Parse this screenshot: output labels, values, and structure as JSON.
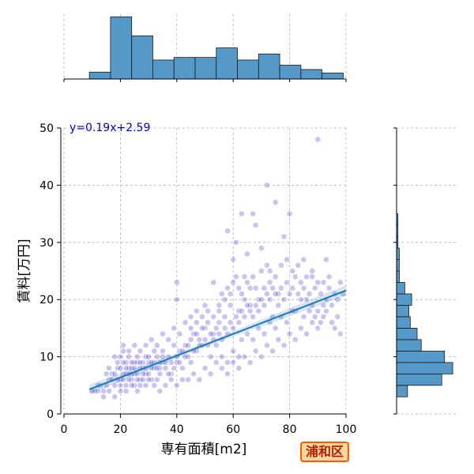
{
  "chart_data": {
    "type": "scatter",
    "title": "",
    "xlabel": "専有面積[m2]",
    "ylabel": "賃料[万円]",
    "xlim": [
      0,
      100
    ],
    "ylim": [
      0,
      50
    ],
    "xticks": [
      "0",
      "20",
      "40",
      "60",
      "80",
      "100"
    ],
    "yticks": [
      "0",
      "10",
      "20",
      "30",
      "40",
      "50"
    ],
    "grid": true,
    "annotation": "y=0.19x+2.59",
    "badge": "浦和区",
    "regression": {
      "slope": 0.19,
      "intercept": 2.59,
      "x_range": [
        9,
        100
      ]
    },
    "point_color": "#3a32c8",
    "bar_color": "#5499c7",
    "line_color": "#1f77b4",
    "x_histogram": {
      "bin_edges": [
        9,
        16.5,
        24,
        31.5,
        39,
        46.5,
        54,
        61.5,
        69,
        76.5,
        84,
        91.5,
        99
      ],
      "counts": [
        8,
        72,
        50,
        22,
        25,
        25,
        36,
        22,
        29,
        16,
        11,
        7
      ]
    },
    "y_histogram": {
      "bin_edges": [
        3,
        5,
        7,
        9,
        11,
        13,
        15,
        17,
        19,
        21,
        23,
        25,
        27,
        29,
        31,
        33,
        35,
        37
      ],
      "counts": [
        8,
        33,
        41,
        35,
        18,
        15,
        10,
        9,
        11,
        6,
        2,
        2,
        2,
        1,
        1,
        1,
        0
      ]
    },
    "points": [
      [
        85,
        27
      ],
      [
        90,
        48
      ],
      [
        72,
        40
      ],
      [
        75,
        37
      ],
      [
        67,
        35
      ],
      [
        63,
        35
      ],
      [
        58,
        32
      ],
      [
        61,
        30
      ],
      [
        60,
        27
      ],
      [
        70,
        29
      ],
      [
        65,
        28
      ],
      [
        80,
        35
      ],
      [
        78,
        31
      ],
      [
        68,
        33
      ],
      [
        93,
        27
      ],
      [
        99,
        21
      ],
      [
        96,
        15
      ],
      [
        98,
        14
      ],
      [
        92,
        19
      ],
      [
        88,
        24
      ],
      [
        84,
        20
      ],
      [
        82,
        18
      ],
      [
        76,
        21
      ],
      [
        74,
        17
      ],
      [
        73,
        23
      ],
      [
        71,
        22
      ],
      [
        69,
        20
      ],
      [
        66,
        19
      ],
      [
        64,
        24
      ],
      [
        62,
        18
      ],
      [
        59,
        21
      ],
      [
        57,
        17
      ],
      [
        55,
        16
      ],
      [
        54,
        12
      ],
      [
        53,
        14
      ],
      [
        52,
        10
      ],
      [
        51,
        18
      ],
      [
        50,
        15
      ],
      [
        49,
        12
      ],
      [
        48,
        13
      ],
      [
        47,
        11
      ],
      [
        46,
        14
      ],
      [
        45,
        9
      ],
      [
        44,
        10
      ],
      [
        43,
        12
      ],
      [
        42,
        8
      ],
      [
        41,
        11
      ],
      [
        40,
        9
      ],
      [
        39,
        12
      ],
      [
        38,
        7
      ],
      [
        37,
        10
      ],
      [
        36,
        8
      ],
      [
        35,
        9
      ],
      [
        34,
        7
      ],
      [
        33,
        10
      ],
      [
        32,
        8
      ],
      [
        31,
        6
      ],
      [
        30,
        9
      ],
      [
        29,
        7
      ],
      [
        28,
        8
      ],
      [
        27,
        6
      ],
      [
        26,
        9
      ],
      [
        25,
        7
      ],
      [
        24,
        6
      ],
      [
        23,
        8
      ],
      [
        22,
        5
      ],
      [
        21,
        7
      ],
      [
        20,
        6
      ],
      [
        19,
        9
      ],
      [
        18,
        5
      ],
      [
        17,
        7
      ],
      [
        16,
        6
      ],
      [
        15,
        5
      ],
      [
        14,
        4
      ],
      [
        13,
        5
      ],
      [
        12,
        4
      ],
      [
        11,
        4
      ],
      [
        10,
        4
      ],
      [
        20,
        10
      ],
      [
        21,
        11
      ],
      [
        22,
        9
      ],
      [
        23,
        10
      ],
      [
        24,
        8
      ],
      [
        25,
        9
      ],
      [
        26,
        7
      ],
      [
        27,
        8
      ],
      [
        28,
        9
      ],
      [
        29,
        10
      ],
      [
        30,
        7
      ],
      [
        31,
        8
      ],
      [
        32,
        9
      ],
      [
        33,
        6
      ],
      [
        34,
        8
      ],
      [
        35,
        10
      ],
      [
        36,
        9
      ],
      [
        37,
        7
      ],
      [
        38,
        9
      ],
      [
        39,
        8
      ],
      [
        40,
        10
      ],
      [
        41,
        9
      ],
      [
        42,
        11
      ],
      [
        43,
        10
      ],
      [
        44,
        12
      ],
      [
        45,
        13
      ],
      [
        46,
        11
      ],
      [
        47,
        14
      ],
      [
        48,
        12
      ],
      [
        49,
        15
      ],
      [
        50,
        13
      ],
      [
        51,
        12
      ],
      [
        52,
        14
      ],
      [
        53,
        13
      ],
      [
        54,
        15
      ],
      [
        55,
        14
      ],
      [
        56,
        13
      ],
      [
        57,
        15
      ],
      [
        58,
        14
      ],
      [
        59,
        16
      ],
      [
        60,
        15
      ],
      [
        61,
        17
      ],
      [
        62,
        16
      ],
      [
        63,
        18
      ],
      [
        64,
        17
      ],
      [
        65,
        19
      ],
      [
        66,
        18
      ],
      [
        67,
        17
      ],
      [
        68,
        19
      ],
      [
        69,
        18
      ],
      [
        70,
        20
      ],
      [
        71,
        19
      ],
      [
        72,
        21
      ],
      [
        73,
        20
      ],
      [
        74,
        22
      ],
      [
        75,
        21
      ],
      [
        76,
        19
      ],
      [
        77,
        22
      ],
      [
        78,
        20
      ],
      [
        79,
        23
      ],
      [
        80,
        21
      ],
      [
        81,
        22
      ],
      [
        82,
        24
      ],
      [
        83,
        21
      ],
      [
        84,
        23
      ],
      [
        85,
        22
      ],
      [
        86,
        20
      ],
      [
        87,
        21
      ],
      [
        88,
        19
      ],
      [
        89,
        22
      ],
      [
        90,
        18
      ],
      [
        91,
        21
      ],
      [
        92,
        23
      ],
      [
        93,
        20
      ],
      [
        94,
        22
      ],
      [
        95,
        19
      ],
      [
        96,
        21
      ],
      [
        97,
        20
      ],
      [
        98,
        23
      ],
      [
        15,
        7
      ],
      [
        16,
        8
      ],
      [
        17,
        6
      ],
      [
        18,
        7
      ],
      [
        19,
        8
      ],
      [
        20,
        5
      ],
      [
        21,
        6
      ],
      [
        22,
        7
      ],
      [
        23,
        6
      ],
      [
        24,
        7
      ],
      [
        25,
        5
      ],
      [
        26,
        6
      ],
      [
        27,
        5
      ],
      [
        28,
        6
      ],
      [
        29,
        5
      ],
      [
        30,
        6
      ],
      [
        18,
        10
      ],
      [
        19,
        6
      ],
      [
        20,
        8
      ],
      [
        21,
        9
      ],
      [
        22,
        8
      ],
      [
        23,
        7
      ],
      [
        24,
        9
      ],
      [
        25,
        8
      ],
      [
        26,
        10
      ],
      [
        27,
        9
      ],
      [
        28,
        7
      ],
      [
        29,
        8
      ],
      [
        30,
        10
      ],
      [
        31,
        9
      ],
      [
        32,
        11
      ],
      [
        33,
        8
      ],
      [
        34,
        9
      ],
      [
        35,
        11
      ],
      [
        40,
        23
      ],
      [
        40,
        20
      ],
      [
        45,
        17
      ],
      [
        47,
        16
      ],
      [
        50,
        19
      ],
      [
        53,
        23
      ],
      [
        55,
        18
      ],
      [
        56,
        21
      ],
      [
        58,
        22
      ],
      [
        60,
        23
      ],
      [
        61,
        24
      ],
      [
        62,
        22
      ],
      [
        63,
        21
      ],
      [
        64,
        20
      ],
      [
        65,
        23
      ],
      [
        66,
        22
      ],
      [
        67,
        24
      ],
      [
        68,
        22
      ],
      [
        70,
        25
      ],
      [
        72,
        26
      ],
      [
        73,
        25
      ],
      [
        75,
        24
      ],
      [
        77,
        26
      ],
      [
        79,
        27
      ],
      [
        81,
        25
      ],
      [
        83,
        26
      ],
      [
        86,
        24
      ],
      [
        88,
        25
      ],
      [
        90,
        23
      ],
      [
        94,
        24
      ],
      [
        56,
        10
      ],
      [
        58,
        9
      ],
      [
        60,
        11
      ],
      [
        62,
        8
      ],
      [
        64,
        10
      ],
      [
        66,
        9
      ],
      [
        68,
        11
      ],
      [
        70,
        10
      ],
      [
        72,
        12
      ],
      [
        74,
        11
      ],
      [
        76,
        13
      ],
      [
        78,
        12
      ],
      [
        80,
        14
      ],
      [
        82,
        13
      ],
      [
        84,
        15
      ],
      [
        86,
        14
      ],
      [
        88,
        16
      ],
      [
        90,
        15
      ],
      [
        92,
        17
      ],
      [
        95,
        16
      ],
      [
        44,
        6
      ],
      [
        46,
        7
      ],
      [
        48,
        6
      ],
      [
        50,
        8
      ],
      [
        52,
        7
      ],
      [
        54,
        9
      ],
      [
        56,
        8
      ],
      [
        58,
        7
      ],
      [
        60,
        9
      ],
      [
        62,
        10
      ],
      [
        36,
        5
      ],
      [
        38,
        6
      ],
      [
        40,
        5
      ],
      [
        42,
        6
      ],
      [
        34,
        4
      ],
      [
        32,
        5
      ],
      [
        26,
        4
      ],
      [
        24,
        5
      ],
      [
        22,
        4
      ],
      [
        20,
        4
      ],
      [
        14,
        3
      ],
      [
        12,
        5
      ],
      [
        16,
        4
      ],
      [
        18,
        3
      ],
      [
        63,
        13
      ],
      [
        65,
        14
      ],
      [
        67,
        13
      ],
      [
        69,
        15
      ],
      [
        71,
        14
      ],
      [
        73,
        16
      ],
      [
        75,
        15
      ],
      [
        77,
        17
      ],
      [
        79,
        16
      ],
      [
        81,
        18
      ],
      [
        85,
        17
      ],
      [
        87,
        18
      ],
      [
        89,
        17
      ],
      [
        91,
        16
      ],
      [
        93,
        18
      ],
      [
        97,
        17
      ],
      [
        59,
        19
      ],
      [
        57,
        20
      ],
      [
        55,
        19
      ],
      [
        53,
        17
      ],
      [
        51,
        16
      ],
      [
        49,
        17
      ],
      [
        47,
        18
      ],
      [
        45,
        15
      ],
      [
        43,
        16
      ],
      [
        41,
        14
      ],
      [
        39,
        15
      ],
      [
        37,
        13
      ],
      [
        35,
        14
      ],
      [
        33,
        12
      ],
      [
        31,
        13
      ],
      [
        29,
        12
      ],
      [
        27,
        11
      ],
      [
        25,
        12
      ],
      [
        23,
        11
      ],
      [
        21,
        12
      ]
    ]
  }
}
